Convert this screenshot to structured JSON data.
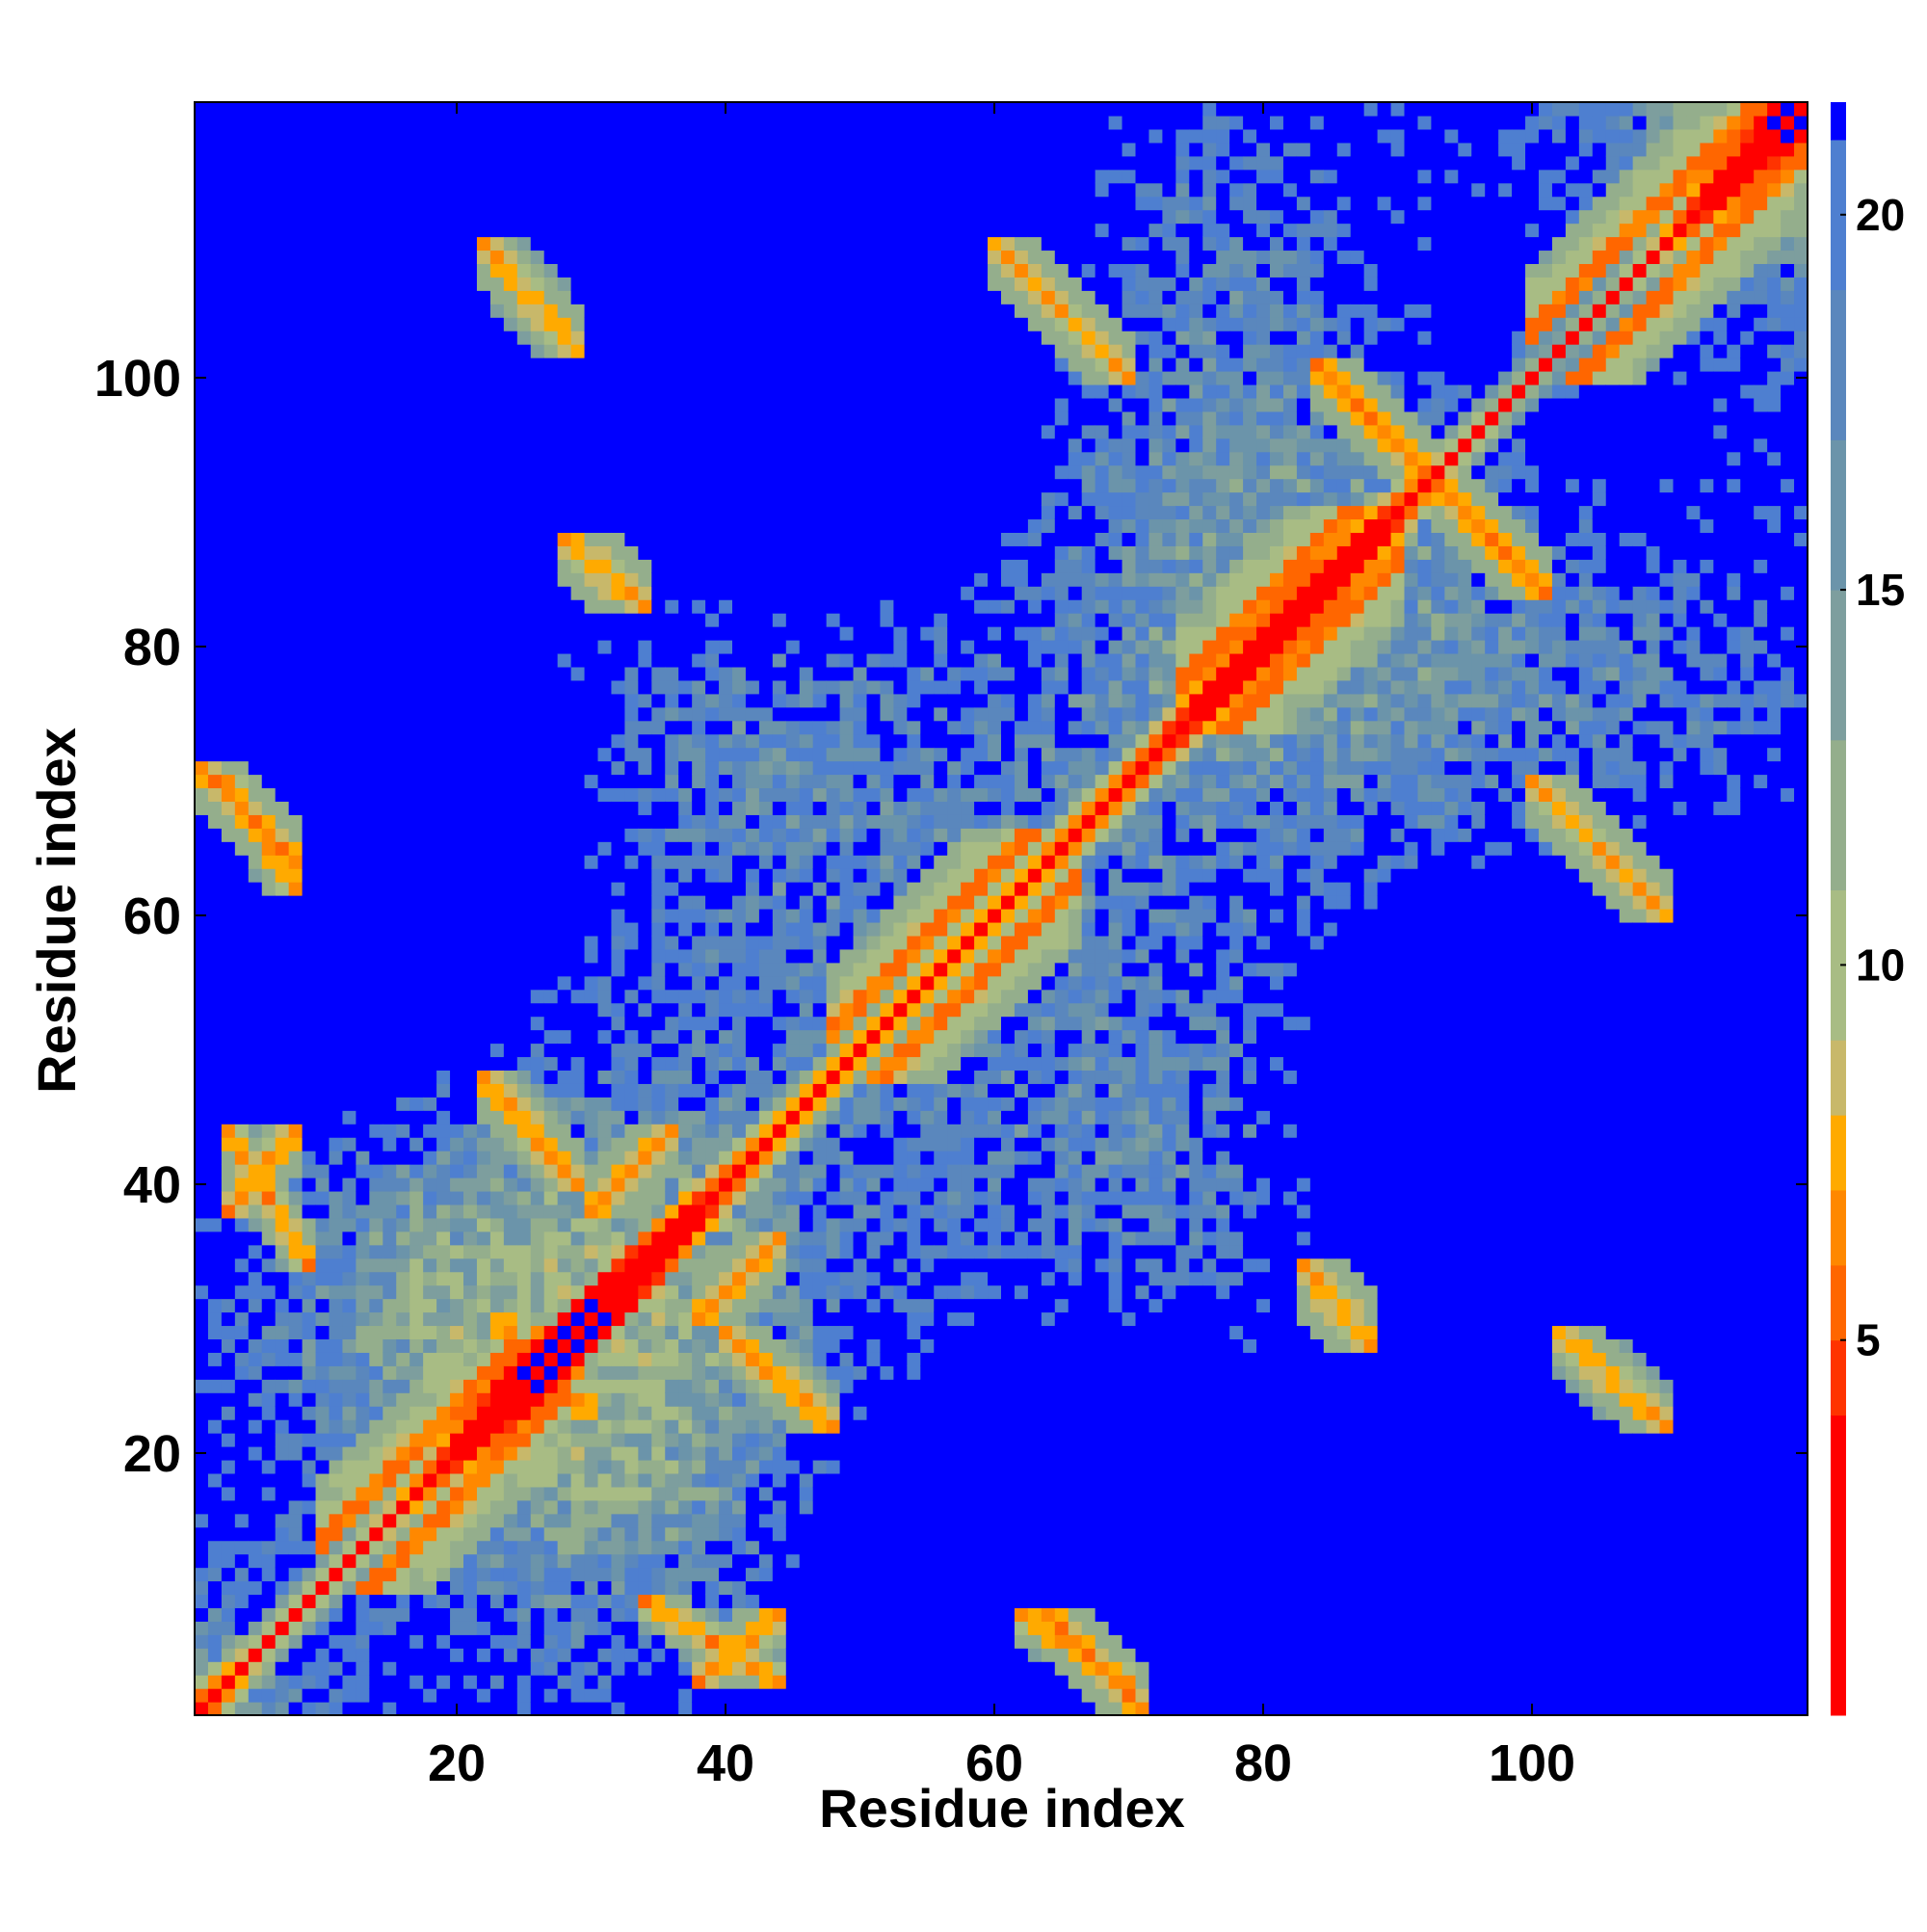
{
  "chart_data": {
    "type": "heatmap",
    "title": "",
    "xlabel": "Residue index",
    "ylabel": "Residue index",
    "n_residues": 120,
    "xlim": [
      1,
      120
    ],
    "ylim": [
      1,
      120
    ],
    "x_ticks": [
      20,
      40,
      60,
      80,
      100
    ],
    "y_ticks": [
      20,
      40,
      60,
      80,
      100
    ],
    "colorbar": {
      "ticks": [
        5,
        10,
        15,
        20
      ],
      "range": [
        0,
        21.5
      ],
      "saturation_value": 21.5,
      "colors": [
        {
          "min": 0,
          "max": 4,
          "color": "#ff0000"
        },
        {
          "min": 4,
          "max": 5,
          "color": "#ff3300"
        },
        {
          "min": 5,
          "max": 6,
          "color": "#ff6600"
        },
        {
          "min": 6,
          "max": 7,
          "color": "#ff8800"
        },
        {
          "min": 7,
          "max": 8,
          "color": "#ffaa00"
        },
        {
          "min": 8,
          "max": 9,
          "color": "#c8b86a"
        },
        {
          "min": 9,
          "max": 11,
          "color": "#a8bc84"
        },
        {
          "min": 11,
          "max": 13,
          "color": "#94ae8c"
        },
        {
          "min": 13,
          "max": 15,
          "color": "#7d9e9e"
        },
        {
          "min": 15,
          "max": 17,
          "color": "#6b94aa"
        },
        {
          "min": 17,
          "max": 19,
          "color": "#5a87bd"
        },
        {
          "min": 19,
          "max": 21,
          "color": "#4e7fd0"
        },
        {
          "min": 21,
          "max": 100,
          "color": "#0000ff"
        }
      ]
    },
    "contact_features": [
      {
        "kind": "diagonal"
      },
      {
        "kind": "helix",
        "start": 10,
        "end": 28
      },
      {
        "kind": "helix",
        "start": 48,
        "end": 66
      },
      {
        "kind": "helix",
        "start": 74,
        "end": 90
      },
      {
        "kind": "helix",
        "start": 100,
        "end": 120
      },
      {
        "kind": "antiparallel",
        "i": [
          1,
          8
        ],
        "j": [
          64,
          71
        ],
        "strength": 0.8
      },
      {
        "kind": "antiparallel",
        "i": [
          3,
          9
        ],
        "j": [
          34,
          44
        ],
        "strength": 0.7
      },
      {
        "kind": "parallel",
        "i": [
          3,
          8
        ],
        "j": [
          38,
          44
        ],
        "strength": 0.7
      },
      {
        "kind": "antiparallel",
        "i": [
          3,
          8
        ],
        "j": [
          62,
          70
        ],
        "strength": 0.7
      },
      {
        "kind": "antiparallel",
        "i": [
          22,
          29
        ],
        "j": [
          40,
          48
        ],
        "strength": 0.7
      },
      {
        "kind": "antiparallel",
        "i": [
          84,
          92
        ],
        "j": [
          93,
          101
        ],
        "strength": 0.8
      },
      {
        "kind": "antiparallel",
        "i": [
          22,
          29
        ],
        "j": [
          102,
          110
        ],
        "strength": 0.5
      },
      {
        "kind": "parallel",
        "i": [
          30,
          36
        ],
        "j": [
          38,
          44
        ],
        "strength": 0.6
      },
      {
        "kind": "antiparallel",
        "i": [
          28,
          34
        ],
        "j": [
          83,
          88
        ],
        "strength": 0.5
      },
      {
        "kind": "antiparallel",
        "i": [
          60,
          70
        ],
        "j": [
          100,
          110
        ],
        "strength": 0.45
      }
    ]
  }
}
